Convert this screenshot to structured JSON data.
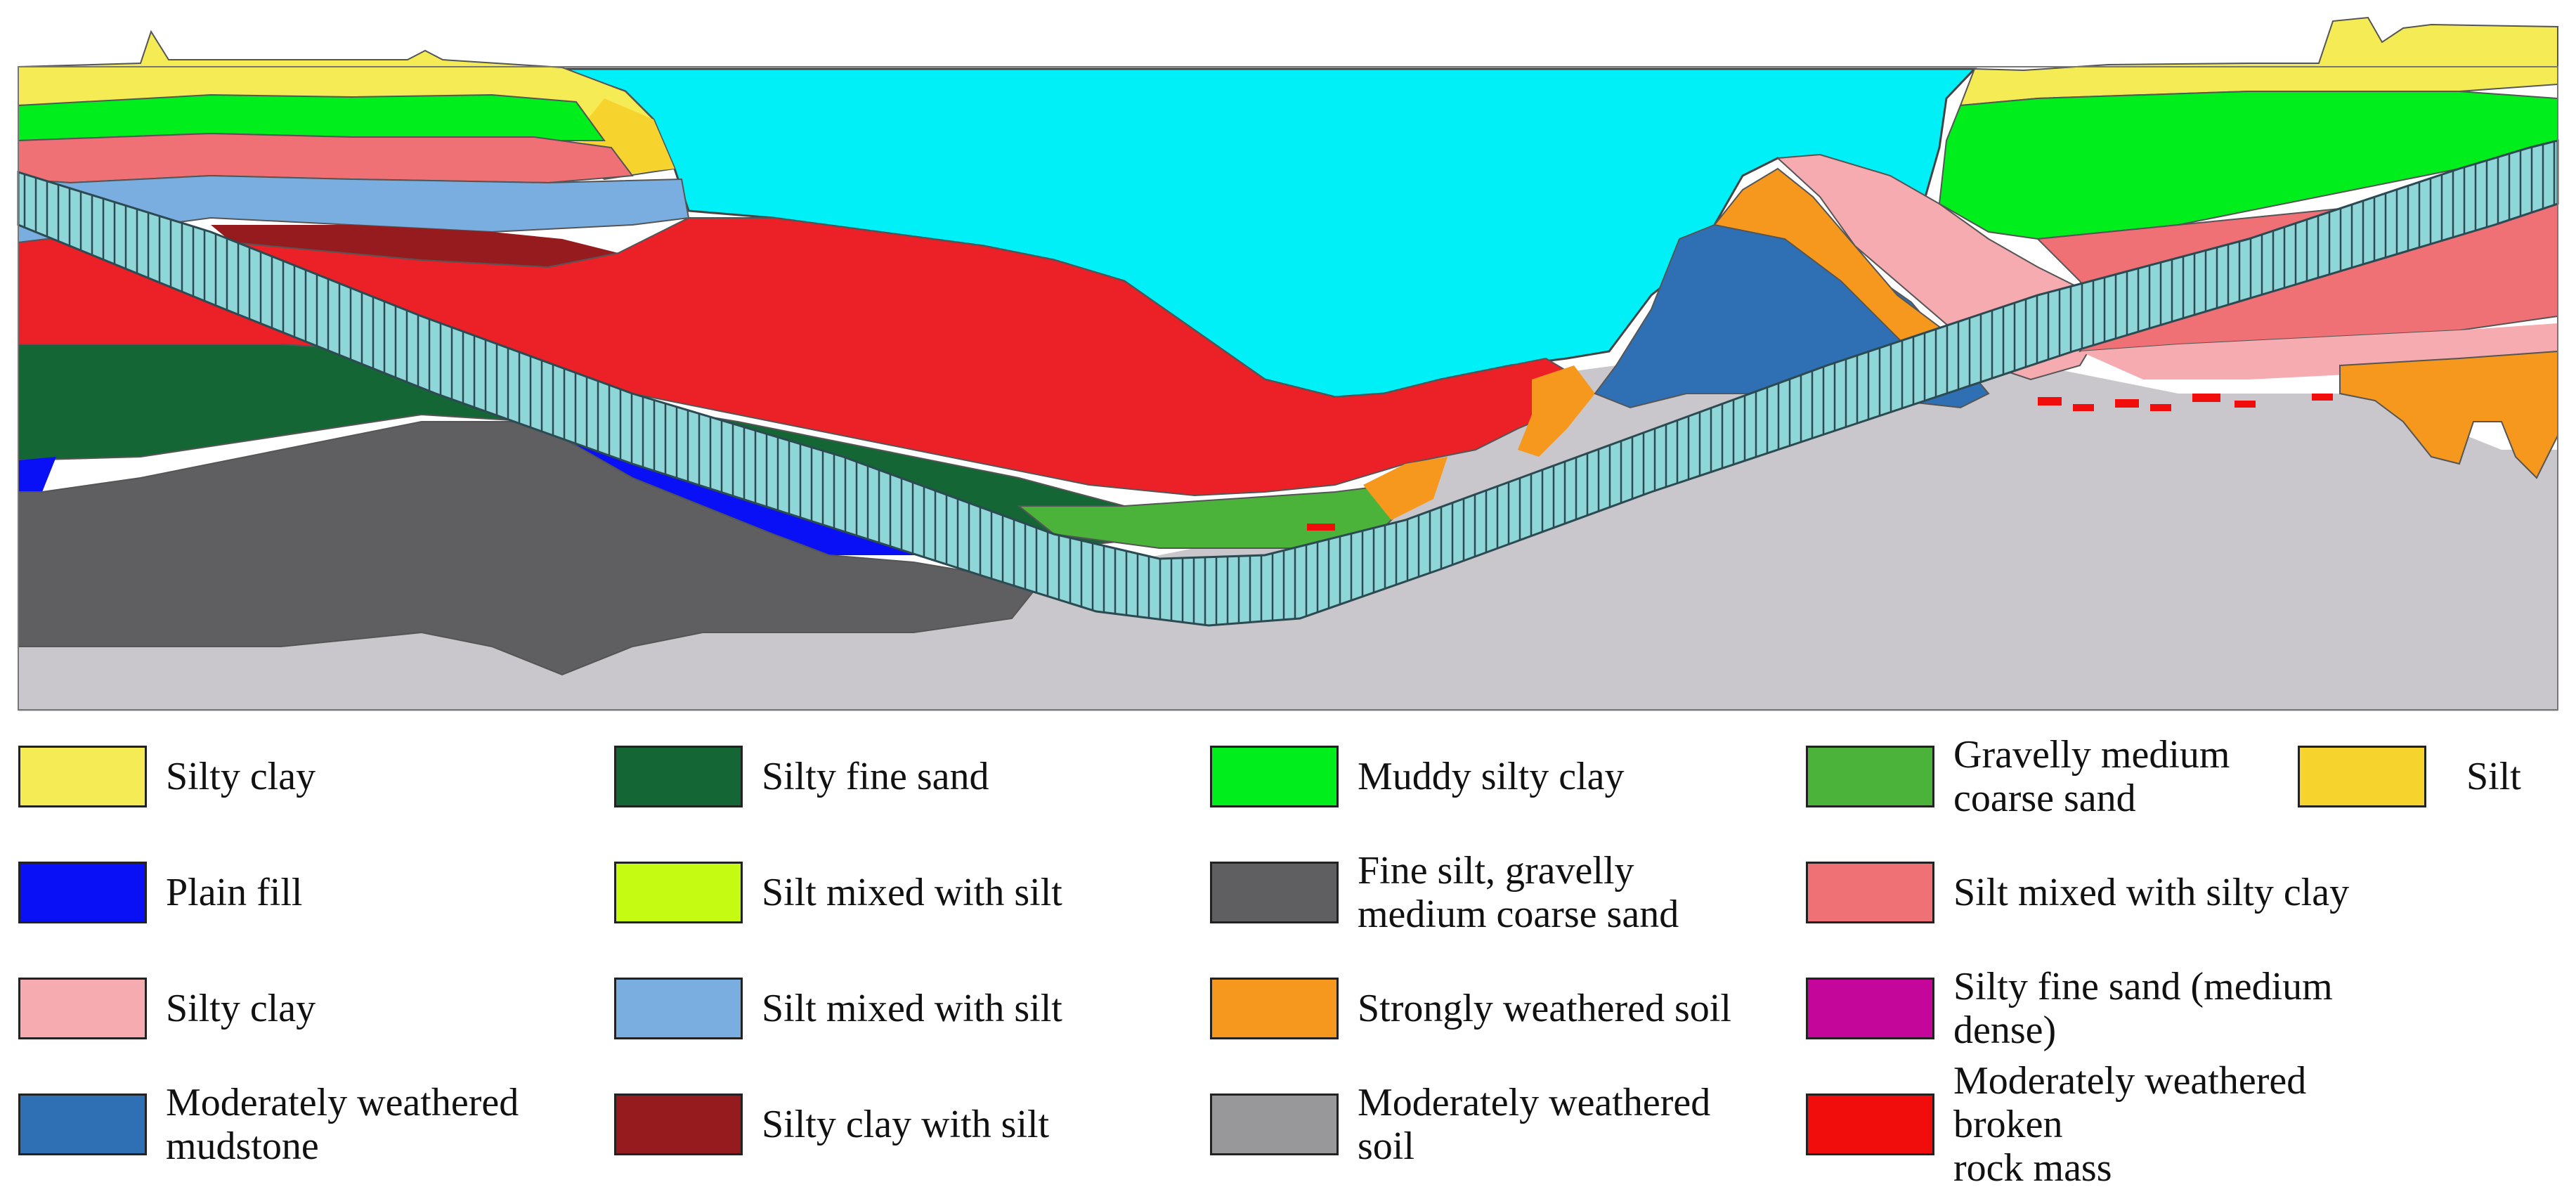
{
  "legend": [
    {
      "label": "Silty clay",
      "color": "#f5ec55"
    },
    {
      "label": "Silty fine sand",
      "color": "#146634"
    },
    {
      "label": "Muddy silty clay",
      "color": "#00ee1c"
    },
    {
      "label": "Gravelly medium\ncoarse sand",
      "color": "#4bb33a"
    },
    {
      "label": "Silt",
      "color": "#f7d32e"
    },
    {
      "label": "Plain fill",
      "color": "#0a10f5"
    },
    {
      "label": "Silt mixed with silt",
      "color": "#c5fb12"
    },
    {
      "label": "Fine silt, gravelly\nmedium coarse sand",
      "color": "#5f5f62"
    },
    {
      "label": "Silt mixed with silty clay",
      "color": "#ef7176"
    },
    {
      "label": "Silty clay",
      "color": "#f6abb0"
    },
    {
      "label": "Silt mixed with silt",
      "color": "#7aaee0"
    },
    {
      "label": "Strongly weathered soil",
      "color": "#f6981d"
    },
    {
      "label": "Silty fine sand (medium dense)",
      "color": "#c4069a"
    },
    {
      "label": "Moderately weathered\nmudstone",
      "color": "#2f70b5"
    },
    {
      "label": "Silty clay with silt",
      "color": "#951b1e"
    },
    {
      "label": "Moderately weathered\nsoil",
      "color": "#98989a"
    },
    {
      "label": "Moderately weathered broken\nrock mass",
      "color": "#f20d0d"
    }
  ],
  "section_colors": {
    "water": "#00f0f8",
    "bedrock": "#c9c7cb",
    "tunnel": "#8fd6d8",
    "tunnel_stripes": "#2b4a52",
    "outline": "#555555"
  }
}
